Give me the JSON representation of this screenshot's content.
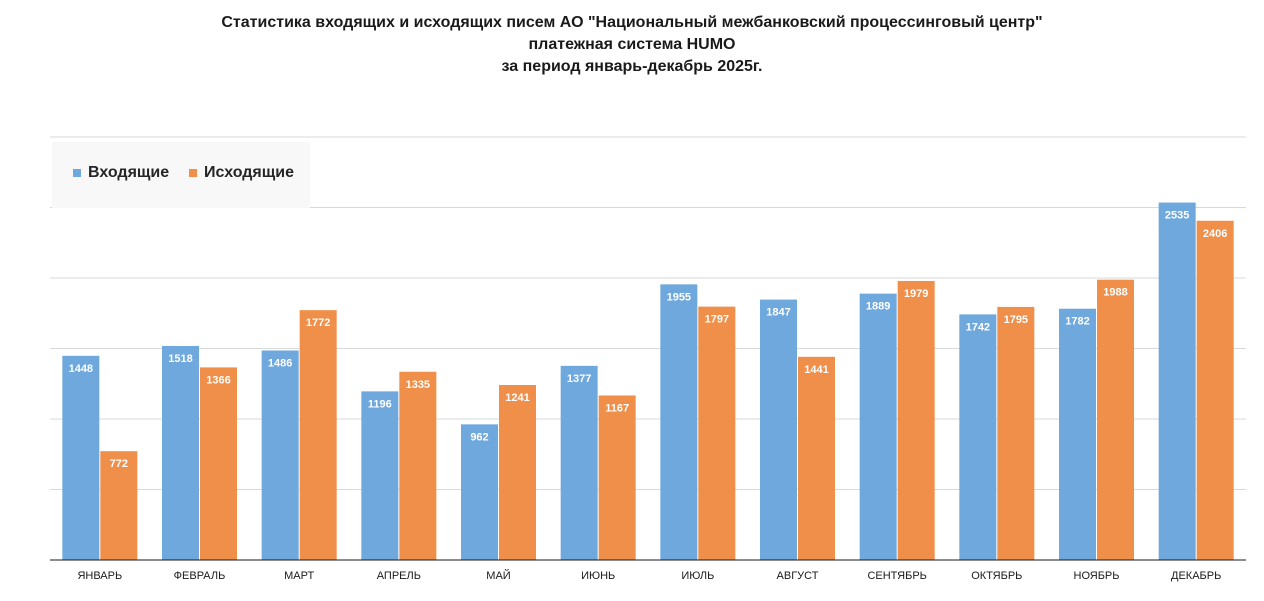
{
  "title": {
    "line1": "Статистика входящих и исходящих писем АО \"Национальный межбанковский процессинговый центр\"",
    "line2": "платежная система HUMO",
    "line3": "за период январь-декабрь 2025г."
  },
  "legend": {
    "incoming": "Входящие",
    "outgoing": "Исходящие"
  },
  "colors": {
    "incoming": "#6fa8dc",
    "outgoing": "#f08f4a",
    "grid": "#d9d9d9",
    "axis": "#1a1a1a"
  },
  "chart_data": {
    "type": "bar",
    "title": "Статистика входящих и исходящих писем АО \"Национальный межбанковский процессинговый центр\" платежная система HUMO за период январь-декабрь 2025г.",
    "categories": [
      "ЯНВАРЬ",
      "ФЕВРАЛЬ",
      "МАРТ",
      "АПРЕЛЬ",
      "МАЙ",
      "ИЮНЬ",
      "ИЮЛЬ",
      "АВГУСТ",
      "СЕНТЯБРЬ",
      "ОКТЯБРЬ",
      "НОЯБРЬ",
      "ДЕКАБРЬ"
    ],
    "series": [
      {
        "name": "Входящие",
        "values": [
          1448,
          1518,
          1486,
          1196,
          962,
          1377,
          1955,
          1847,
          1889,
          1742,
          1782,
          2535
        ]
      },
      {
        "name": "Исходящие",
        "values": [
          772,
          1366,
          1772,
          1335,
          1241,
          1167,
          1797,
          1441,
          1979,
          1795,
          1988,
          2406
        ]
      }
    ],
    "ylim": [
      0,
      3000
    ],
    "ytick_step": 500,
    "grid": true,
    "legend_position": "top-left",
    "xlabel": "",
    "ylabel": ""
  }
}
